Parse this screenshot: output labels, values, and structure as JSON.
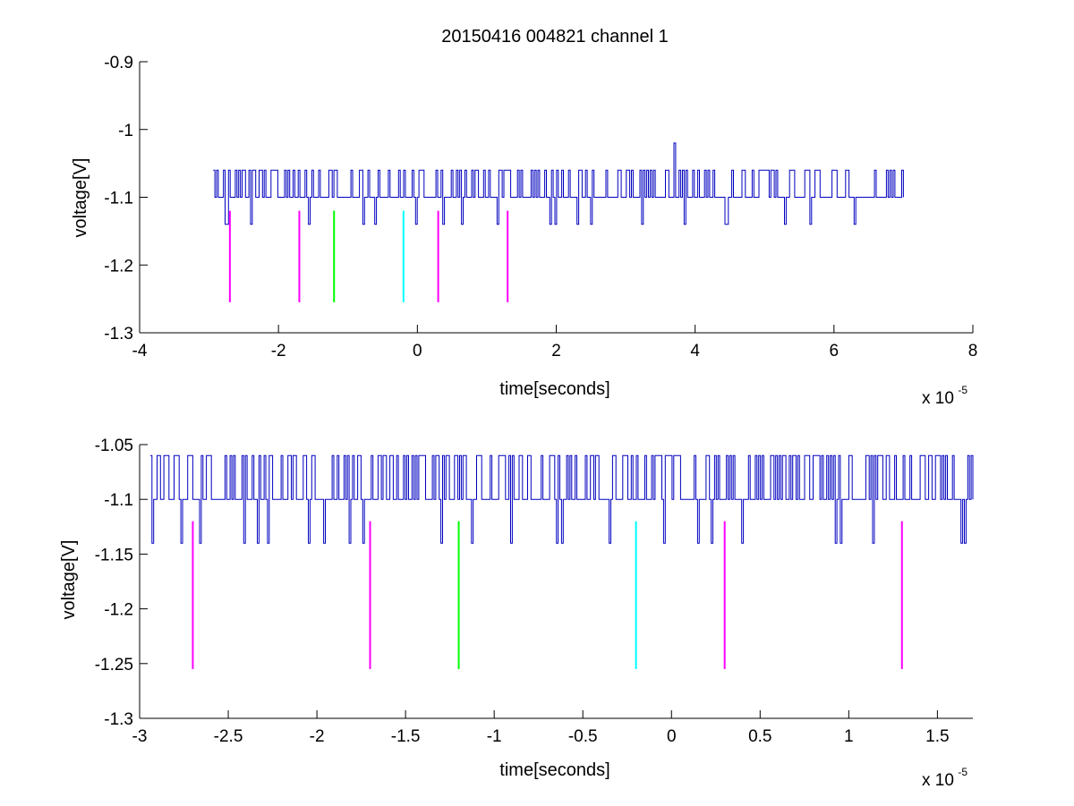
{
  "window": {
    "title": "20150416 004821 channel 1"
  },
  "chart_data": [
    {
      "type": "line",
      "title": "20150416 004821 channel 1",
      "xlabel": "time[seconds]",
      "ylabel": "voltage[V]",
      "x_exponent_label": "x 10",
      "x_exponent": "-5",
      "x_scale": 1e-05,
      "xlim": [
        -4,
        8
      ],
      "ylim": [
        -1.3,
        -0.9
      ],
      "xticks": [
        "-4",
        "-2",
        "0",
        "2",
        "4",
        "6",
        "8"
      ],
      "yticks": [
        "-1.3",
        "-1.2",
        "-1.1",
        "-1",
        "-0.9"
      ],
      "grid": false,
      "box": false,
      "signal": {
        "color": "#0000bf",
        "x_range": [
          -2.94,
          7.0
        ],
        "baseline": -1.1,
        "high_level": -1.06,
        "low_level": -1.14,
        "spike": {
          "x": 3.68,
          "y": -1.02
        }
      },
      "markers": [
        {
          "x": -2.7,
          "y_top": -1.12,
          "y_bottom": -1.255,
          "color": "#ff00ff"
        },
        {
          "x": -1.7,
          "y_top": -1.12,
          "y_bottom": -1.255,
          "color": "#ff00ff"
        },
        {
          "x": -1.2,
          "y_top": -1.12,
          "y_bottom": -1.255,
          "color": "#00ff00"
        },
        {
          "x": -0.2,
          "y_top": -1.12,
          "y_bottom": -1.255,
          "color": "#00ffff"
        },
        {
          "x": 0.3,
          "y_top": -1.12,
          "y_bottom": -1.255,
          "color": "#ff00ff"
        },
        {
          "x": 1.3,
          "y_top": -1.12,
          "y_bottom": -1.255,
          "color": "#ff00ff"
        }
      ]
    },
    {
      "type": "line",
      "title": "",
      "xlabel": "time[seconds]",
      "ylabel": "voltage[V]",
      "x_exponent_label": "x 10",
      "x_exponent": "-5",
      "x_scale": 1e-05,
      "xlim": [
        -3.0,
        1.7
      ],
      "ylim": [
        -1.3,
        -1.05
      ],
      "xticks": [
        "-3",
        "-2.5",
        "-2",
        "-1.5",
        "-1",
        "-0.5",
        "0",
        "0.5",
        "1",
        "1.5"
      ],
      "yticks": [
        "-1.3",
        "-1.25",
        "-1.2",
        "-1.15",
        "-1.1",
        "-1.05"
      ],
      "grid": false,
      "box": false,
      "signal": {
        "color": "#0000bf",
        "x_range": [
          -2.94,
          1.7
        ],
        "baseline": -1.1,
        "high_level": -1.06,
        "low_level": -1.14
      },
      "markers": [
        {
          "x": -2.7,
          "y_top": -1.12,
          "y_bottom": -1.255,
          "color": "#ff00ff"
        },
        {
          "x": -1.7,
          "y_top": -1.12,
          "y_bottom": -1.255,
          "color": "#ff00ff"
        },
        {
          "x": -1.2,
          "y_top": -1.12,
          "y_bottom": -1.255,
          "color": "#00ff00"
        },
        {
          "x": -0.2,
          "y_top": -1.12,
          "y_bottom": -1.255,
          "color": "#00ffff"
        },
        {
          "x": 0.3,
          "y_top": -1.12,
          "y_bottom": -1.255,
          "color": "#ff00ff"
        },
        {
          "x": 1.3,
          "y_top": -1.12,
          "y_bottom": -1.255,
          "color": "#ff00ff"
        }
      ]
    }
  ]
}
